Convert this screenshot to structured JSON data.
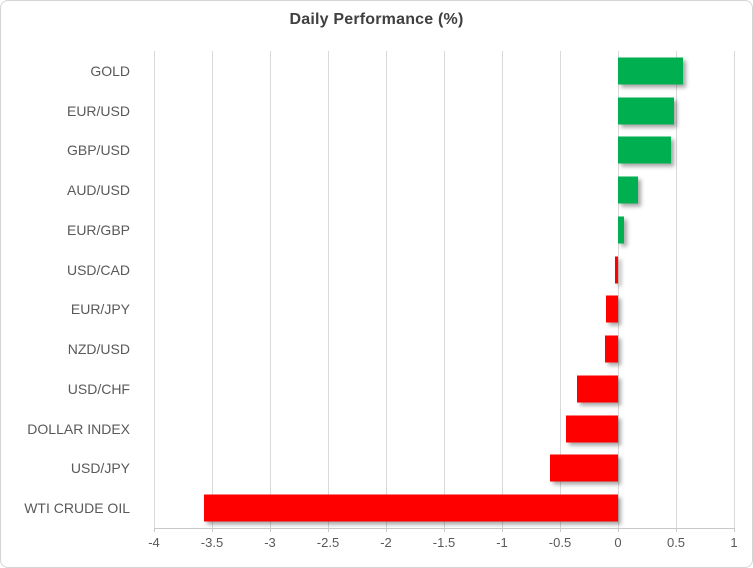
{
  "chart": {
    "colors": {
      "positive": "#00b050",
      "negative": "#ff0000",
      "gridline": "#d9d9d9",
      "axis_line": "#c9c9c9",
      "label": "#595959",
      "title": "#404040",
      "frame_border": "#d5d5d5",
      "background": "#ffffff"
    }
  },
  "chart_data": {
    "type": "bar",
    "orientation": "horizontal",
    "title": "Daily Performance (%)",
    "categories": [
      "GOLD",
      "EUR/USD",
      "GBP/USD",
      "AUD/USD",
      "EUR/GBP",
      "USD/CAD",
      "EUR/JPY",
      "NZD/USD",
      "USD/CHF",
      "DOLLAR INDEX",
      "USD/JPY",
      "WTI CRUDE OIL"
    ],
    "values": [
      0.56,
      0.48,
      0.46,
      0.17,
      0.05,
      -0.03,
      -0.1,
      -0.11,
      -0.35,
      -0.45,
      -0.59,
      -3.57
    ],
    "xlabel": "",
    "ylabel": "",
    "xlim": [
      -4,
      1
    ],
    "xticks": [
      -4,
      -3.5,
      -3,
      -2.5,
      -2,
      -1.5,
      -1,
      -0.5,
      0,
      0.5,
      1
    ],
    "xtick_labels": [
      "-4",
      "-3.5",
      "-3",
      "-2.5",
      "-2",
      "-1.5",
      "-1",
      "-0.5",
      "0",
      "0.5",
      "1"
    ],
    "grid": "vertical",
    "legend": "none",
    "bar_shadow": true
  }
}
